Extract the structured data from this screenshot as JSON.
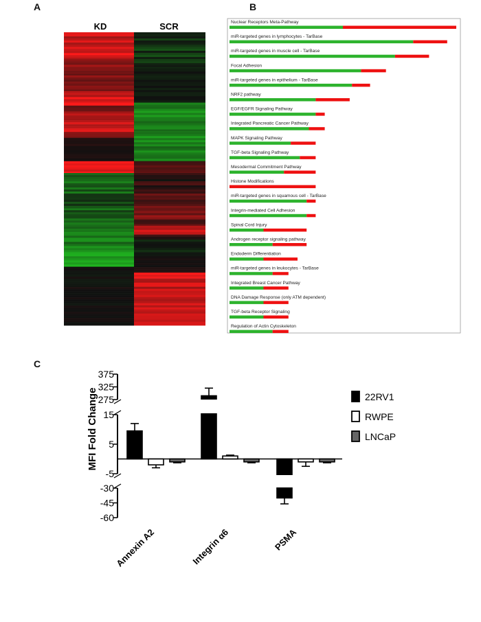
{
  "panels": {
    "a": "A",
    "b": "B",
    "c": "C"
  },
  "heatmap": {
    "columns": [
      "KD",
      "SCR"
    ],
    "colors": {
      "up": "#ff1a1a",
      "down": "#22cc22",
      "zero": "#101010"
    },
    "kd_profile": [
      [
        0.0,
        0.05,
        0.75
      ],
      [
        0.05,
        0.09,
        0.85
      ],
      [
        0.09,
        0.14,
        0.55
      ],
      [
        0.14,
        0.2,
        0.45
      ],
      [
        0.2,
        0.24,
        0.8
      ],
      [
        0.24,
        0.25,
        0.95
      ],
      [
        0.25,
        0.27,
        0.4
      ],
      [
        0.27,
        0.3,
        0.65
      ],
      [
        0.3,
        0.34,
        0.8
      ],
      [
        0.34,
        0.36,
        0.35
      ],
      [
        0.36,
        0.44,
        0.05
      ],
      [
        0.44,
        0.48,
        0.95
      ],
      [
        0.48,
        0.55,
        -0.45
      ],
      [
        0.55,
        0.6,
        -0.25
      ],
      [
        0.6,
        0.68,
        -0.4
      ],
      [
        0.68,
        0.75,
        -0.55
      ],
      [
        0.75,
        0.8,
        -0.8
      ],
      [
        0.8,
        0.82,
        0.0
      ],
      [
        0.82,
        1.0,
        0.0
      ]
    ],
    "scr_profile": [
      [
        0.0,
        0.12,
        -0.2
      ],
      [
        0.12,
        0.24,
        -0.05
      ],
      [
        0.24,
        0.34,
        -0.6
      ],
      [
        0.34,
        0.44,
        -0.6
      ],
      [
        0.44,
        0.48,
        0.2
      ],
      [
        0.48,
        0.55,
        0.1
      ],
      [
        0.55,
        0.61,
        0.3
      ],
      [
        0.61,
        0.64,
        0.45
      ],
      [
        0.64,
        0.66,
        0.25
      ],
      [
        0.66,
        0.69,
        0.75
      ],
      [
        0.69,
        0.7,
        0.2
      ],
      [
        0.7,
        0.75,
        -0.1
      ],
      [
        0.75,
        0.78,
        0.0
      ],
      [
        0.78,
        0.82,
        0.05
      ],
      [
        0.82,
        0.84,
        0.85
      ],
      [
        0.84,
        1.0,
        0.75
      ]
    ]
  },
  "pathways": [
    {
      "label": "Nuclear Receptors Meta-Pathway",
      "green": 0.5,
      "red": 0.5
    },
    {
      "label": "miR-targeted genes in lymphocytes - TarBase",
      "green": 0.81,
      "red": 0.15
    },
    {
      "label": "miR-targeted genes in muscle cell - TarBase",
      "green": 0.73,
      "red": 0.15
    },
    {
      "label": "Focal Adhesion",
      "green": 0.58,
      "red": 0.11
    },
    {
      "label": "miR-targeted genes in epithelium - TarBase",
      "green": 0.54,
      "red": 0.08
    },
    {
      "label": "NRF2 pathway",
      "green": 0.38,
      "red": 0.15
    },
    {
      "label": "EGF/EGFR Signaling Pathway",
      "green": 0.38,
      "red": 0.04
    },
    {
      "label": "Integrated Pancreatic Cancer Pathway",
      "green": 0.35,
      "red": 0.07
    },
    {
      "label": "MAPK Signaling Pathway",
      "green": 0.27,
      "red": 0.11
    },
    {
      "label": "TGF-beta Signaling Pathway",
      "green": 0.31,
      "red": 0.07
    },
    {
      "label": "Mesodermal Commitment Pathway",
      "green": 0.24,
      "red": 0.14
    },
    {
      "label": "Histone Modifications",
      "green": 0.0,
      "red": 0.38
    },
    {
      "label": "miR-targeted genes in squamous cell - TarBase",
      "green": 0.34,
      "red": 0.04
    },
    {
      "label": "Integrin-mediated Cell Adhesion",
      "green": 0.34,
      "red": 0.04
    },
    {
      "label": "Spinal Cord Injury",
      "green": 0.15,
      "red": 0.19
    },
    {
      "label": "Androgen receptor signaling pathway",
      "green": 0.19,
      "red": 0.15
    },
    {
      "label": "Endoderm Differentiation",
      "green": 0.15,
      "red": 0.15
    },
    {
      "label": "miR-targeted genes in leukocytes - TarBase",
      "green": 0.19,
      "red": 0.07
    },
    {
      "label": "Integrated Breast Cancer Pathway",
      "green": 0.15,
      "red": 0.11
    },
    {
      "label": "DNA Damage Response (only ATM dependent)",
      "green": 0.15,
      "red": 0.11
    },
    {
      "label": "TGF-beta Receptor Signaling",
      "green": 0.15,
      "red": 0.11
    },
    {
      "label": "Regulation of Actin Cytoskeleton",
      "green": 0.19,
      "red": 0.07
    }
  ],
  "pathway_colors": {
    "green": "#2db32d",
    "red": "#ee1111"
  },
  "chart_data": {
    "type": "bar",
    "ylabel": "MFI Fold Change",
    "categories": [
      "Annexin A2",
      "Integrin α6",
      "PSMA"
    ],
    "series": [
      {
        "name": "22RV1",
        "fill": "#000000",
        "values": [
          9.5,
          290,
          -40
        ],
        "errors": [
          2.5,
          30,
          6
        ]
      },
      {
        "name": "RWPE",
        "fill": "#ffffff",
        "values": [
          -2,
          1,
          -1
        ],
        "errors": [
          1,
          0.3,
          1.5
        ]
      },
      {
        "name": "LNCaP",
        "fill": "#666666",
        "values": [
          -1,
          -1,
          -1
        ],
        "errors": [
          0.3,
          0.3,
          0.3
        ]
      }
    ],
    "y_segments": [
      {
        "range": [
          275,
          375
        ],
        "ticks": [
          "375",
          "325",
          "275"
        ]
      },
      {
        "range": [
          -5,
          15
        ],
        "ticks": [
          "15",
          "5",
          "-5"
        ]
      },
      {
        "range": [
          -60,
          -30
        ],
        "ticks": [
          "-30",
          "-45",
          "-60"
        ]
      }
    ]
  }
}
